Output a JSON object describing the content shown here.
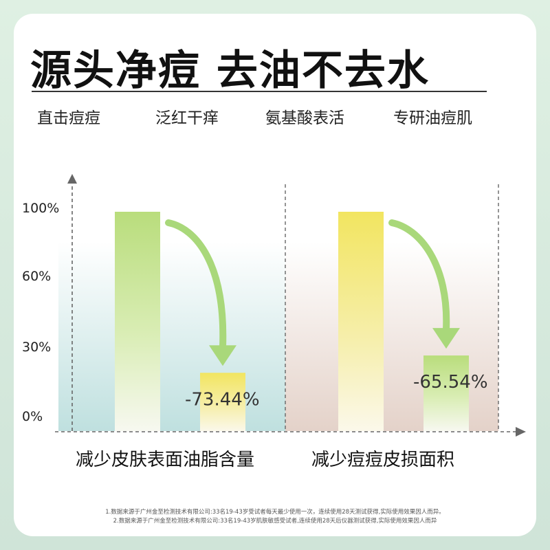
{
  "title": "源头净痘 去油不去水",
  "features": [
    "直击痘痘",
    "泛红干痒",
    "氨基酸表活",
    "专研油痘肌"
  ],
  "footnotes": [
    "1.数据来源于广州金至检测技术有限公司:33名19-43岁受试者每天最少使用一次，连续使用28天测试获得,实际使用效果因人而异。",
    "2.数据来源于广州金至检测技术有限公司:33名19-43岁肌肤敏感受试者,连续使用28天后仪器测试获得,实际使用效果因人而异"
  ],
  "colors": {
    "green_bar": "#b9dd7c",
    "yellow_bar": "#f2e560",
    "arrow": "#a9d87a",
    "axis": "#666666",
    "panel1_bg": "#bfe0df",
    "panel2_bg": "#e4d2c9"
  },
  "chart_data": [
    {
      "type": "bar",
      "title": "减少皮肤表面油脂含量",
      "ytick_labels": [
        "0%",
        "30%",
        "60%",
        "100%"
      ],
      "yticks": [
        0,
        30,
        60,
        100
      ],
      "ylim": [
        0,
        100
      ],
      "values": [
        100,
        26.56
      ],
      "change_label": "-73.44%"
    },
    {
      "type": "bar",
      "title": "减少痘痘皮损面积",
      "yticks": [
        0,
        30,
        60,
        100
      ],
      "ylim": [
        0,
        100
      ],
      "values": [
        100,
        34.46
      ],
      "change_label": "-65.54%"
    }
  ]
}
